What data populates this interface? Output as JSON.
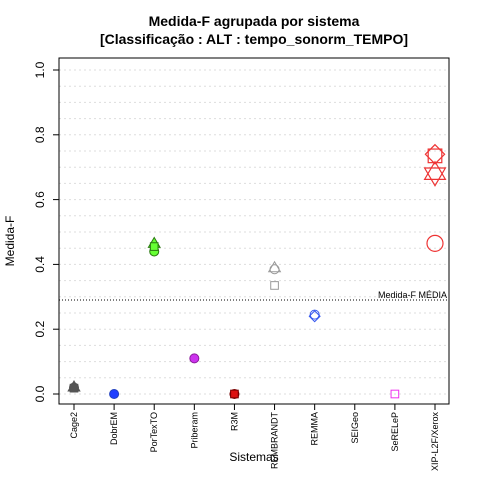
{
  "chart_data": {
    "type": "scatter",
    "title": "Medida-F agrupada por sistema",
    "subtitle": "[Classificação : ALT : tempo_sonorm_TEMPO]",
    "xlabel": "Sistemas",
    "ylabel": "Medida-F",
    "ylim": [
      0,
      1
    ],
    "yticks": [
      "0.0",
      "0.2",
      "0.4",
      "0.6",
      "0.8",
      "1.0"
    ],
    "grid": "horizontal dotted",
    "categories": [
      "Cage2",
      "DobrEM",
      "PorTexTO",
      "Priberam",
      "R3M",
      "REMBRANDT",
      "REMMA",
      "SEIGeo",
      "SeRELeP",
      "XIP-L2F/Xerox"
    ],
    "reference_line": {
      "label": "Medida-F MÉDIA",
      "value": 0.29
    },
    "points": [
      {
        "category": "Cage2",
        "y": 0.02,
        "shape": "circle",
        "color": "#555555",
        "fill": "#555555"
      },
      {
        "category": "Cage2",
        "y": 0.022,
        "shape": "triangle",
        "color": "#555555",
        "fill": "#555555"
      },
      {
        "category": "Cage2",
        "y": 0.018,
        "shape": "square",
        "color": "#555555",
        "fill": "#555555"
      },
      {
        "category": "DobrEM",
        "y": 0.0,
        "shape": "circle",
        "color": "#1f3fbf",
        "fill": "#1f3fff"
      },
      {
        "category": "PorTexTO",
        "y": 0.44,
        "shape": "circle",
        "color": "#2a7a10",
        "fill": "#66ff33"
      },
      {
        "category": "PorTexTO",
        "y": 0.465,
        "shape": "triangle",
        "color": "#2a7a10",
        "fill": "#66ff33"
      },
      {
        "category": "PorTexTO",
        "y": 0.455,
        "shape": "square",
        "color": "#2a7a10",
        "fill": "#66ff33"
      },
      {
        "category": "Priberam",
        "y": 0.11,
        "shape": "circle",
        "color": "#8a1a9a",
        "fill": "#cc33ee"
      },
      {
        "category": "R3M",
        "y": 0.0,
        "shape": "circle",
        "color": "#7a0000",
        "fill": "#dd1111"
      },
      {
        "category": "R3M",
        "y": 0.0,
        "shape": "square",
        "color": "#7a0000",
        "fill": "#dd1111"
      },
      {
        "category": "REMBRANDT",
        "y": 0.385,
        "shape": "circle",
        "color": "#999999",
        "fill": "none"
      },
      {
        "category": "REMBRANDT",
        "y": 0.39,
        "shape": "triangle",
        "color": "#999999",
        "fill": "none"
      },
      {
        "category": "REMBRANDT",
        "y": 0.335,
        "shape": "square",
        "color": "#999999",
        "fill": "none"
      },
      {
        "category": "REMMA",
        "y": 0.245,
        "shape": "circle",
        "color": "#3355ee",
        "fill": "none"
      },
      {
        "category": "REMMA",
        "y": 0.24,
        "shape": "diamond",
        "color": "#3355ee",
        "fill": "none"
      },
      {
        "category": "SeRELeP",
        "y": 0.0,
        "shape": "square",
        "color": "#ee33ee",
        "fill": "none"
      },
      {
        "category": "XIP-L2F/Xerox",
        "y": 0.465,
        "shape": "circle",
        "color": "#ee3333",
        "fill": "none",
        "size": "large"
      },
      {
        "category": "XIP-L2F/Xerox",
        "y": 0.685,
        "shape": "triangle",
        "color": "#ee3333",
        "fill": "none",
        "size": "large"
      },
      {
        "category": "XIP-L2F/Xerox",
        "y": 0.675,
        "shape": "triangle-down",
        "color": "#ee3333",
        "fill": "none",
        "size": "large"
      },
      {
        "category": "XIP-L2F/Xerox",
        "y": 0.735,
        "shape": "square",
        "color": "#ee3333",
        "fill": "none",
        "size": "large"
      },
      {
        "category": "XIP-L2F/Xerox",
        "y": 0.74,
        "shape": "diamond",
        "color": "#ee3333",
        "fill": "none",
        "size": "large"
      }
    ]
  }
}
